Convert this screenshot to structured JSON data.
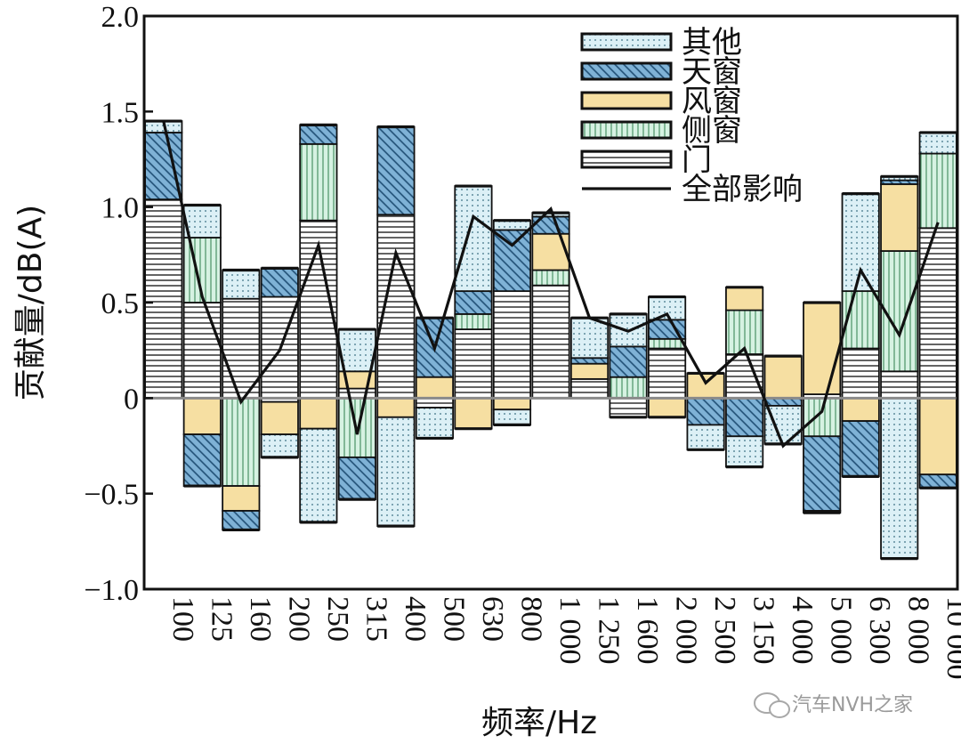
{
  "watermark": "汽车NVH之家",
  "chart_data": {
    "type": "bar",
    "stacked": true,
    "xlabel": "频率/Hz",
    "ylabel": "贡献量/dB(A)",
    "ylim": [
      -1.0,
      2.0
    ],
    "yticks": [
      "−1.0",
      "−0.5",
      "0",
      "0.5",
      "1.0",
      "1.5",
      "2.0"
    ],
    "ytick_values": [
      -1.0,
      -0.5,
      0,
      0.5,
      1.0,
      1.5,
      2.0
    ],
    "legend_position": "top-right",
    "categories": [
      "100",
      "125",
      "160",
      "200",
      "250",
      "315",
      "400",
      "500",
      "630",
      "800",
      "1 000",
      "1 250",
      "1 600",
      "2 000",
      "2 500",
      "3 150",
      "4 000",
      "5 000",
      "6 300",
      "8 000",
      "10 000"
    ],
    "series": [
      {
        "name": "门",
        "key": "door",
        "color": "#ffffff",
        "values": [
          1.04,
          0.5,
          0.52,
          0.53,
          0.93,
          0.05,
          0.96,
          -0.05,
          0.36,
          0.56,
          0.59,
          0.1,
          -0.1,
          0.26,
          -0.03,
          0.23,
          -0.23,
          0.02,
          0.26,
          0.14,
          0.89
        ]
      },
      {
        "name": "侧窗",
        "key": "side",
        "color": "#d6f2e2",
        "values": [
          0.0,
          0.34,
          -0.46,
          0.0,
          0.4,
          -0.31,
          0.0,
          0.0,
          0.08,
          0.0,
          0.08,
          0.0,
          0.11,
          0.05,
          0.0,
          0.23,
          0.0,
          -0.2,
          0.3,
          0.63,
          0.39
        ]
      },
      {
        "name": "风窗",
        "key": "wind",
        "color": "#f6dfa2",
        "values": [
          0.0,
          -0.19,
          -0.13,
          -0.17,
          -0.16,
          0.09,
          -0.1,
          0.11,
          -0.16,
          -0.06,
          0.19,
          0.08,
          0.0,
          -0.1,
          0.13,
          0.12,
          0.22,
          0.48,
          -0.12,
          0.35,
          -0.4
        ]
      },
      {
        "name": "天窗",
        "key": "roof",
        "color": "#7fb2d6",
        "values": [
          0.35,
          0.0,
          -0.1,
          0.15,
          0.1,
          -0.22,
          0.46,
          0.31,
          0.12,
          0.32,
          0.09,
          0.03,
          0.16,
          0.1,
          -0.14,
          -0.2,
          -0.04,
          -0.39,
          -0.29,
          0.02,
          -0.07
        ]
      },
      {
        "name": "其他",
        "key": "other",
        "color": "#dcf0f6",
        "values": [
          0.06,
          0.17,
          0.15,
          0.0,
          0.0,
          0.22,
          0.0,
          0.0,
          0.55,
          0.05,
          0.02,
          0.21,
          0.17,
          0.12,
          0.0,
          0.0,
          0.0,
          0.0,
          0.51,
          0.02,
          0.11
        ]
      }
    ],
    "negatives": {
      "door": [
        0,
        0,
        0,
        -0.02,
        0,
        0,
        0,
        -0.05,
        0,
        0,
        0,
        0,
        -0.1,
        0,
        0,
        0,
        0,
        0,
        0,
        0,
        0
      ],
      "side": [
        0,
        0,
        -0.46,
        0,
        0,
        -0.31,
        0,
        0,
        0,
        0,
        0,
        0,
        0,
        0,
        0,
        0,
        0,
        -0.2,
        0,
        0,
        0
      ],
      "wind": [
        0,
        -0.19,
        -0.13,
        -0.17,
        -0.16,
        0,
        -0.1,
        0,
        -0.16,
        -0.06,
        0,
        0,
        0,
        -0.1,
        0,
        0,
        0,
        0,
        -0.12,
        0,
        -0.4
      ],
      "roof": [
        0,
        -0.27,
        -0.1,
        0,
        0,
        -0.22,
        0,
        0,
        0,
        0,
        0,
        0,
        0,
        0,
        -0.14,
        -0.2,
        -0.04,
        -0.39,
        -0.29,
        0,
        -0.07
      ],
      "other": [
        0,
        0,
        0,
        -0.12,
        -0.49,
        0,
        -0.57,
        -0.16,
        0,
        -0.08,
        0,
        0,
        0,
        0,
        -0.13,
        -0.16,
        -0.2,
        -0.01,
        0,
        -0.84,
        0
      ]
    },
    "line": {
      "name": "全部影响",
      "color": "#111111",
      "values": [
        1.45,
        0.53,
        -0.02,
        0.25,
        0.8,
        -0.19,
        0.76,
        0.26,
        0.95,
        0.8,
        0.99,
        0.42,
        0.35,
        0.44,
        0.08,
        0.26,
        -0.25,
        -0.07,
        0.67,
        0.33,
        0.92
      ]
    }
  },
  "legend_order": [
    "其他",
    "天窗",
    "风窗",
    "侧窗",
    "门",
    "全部影响"
  ]
}
